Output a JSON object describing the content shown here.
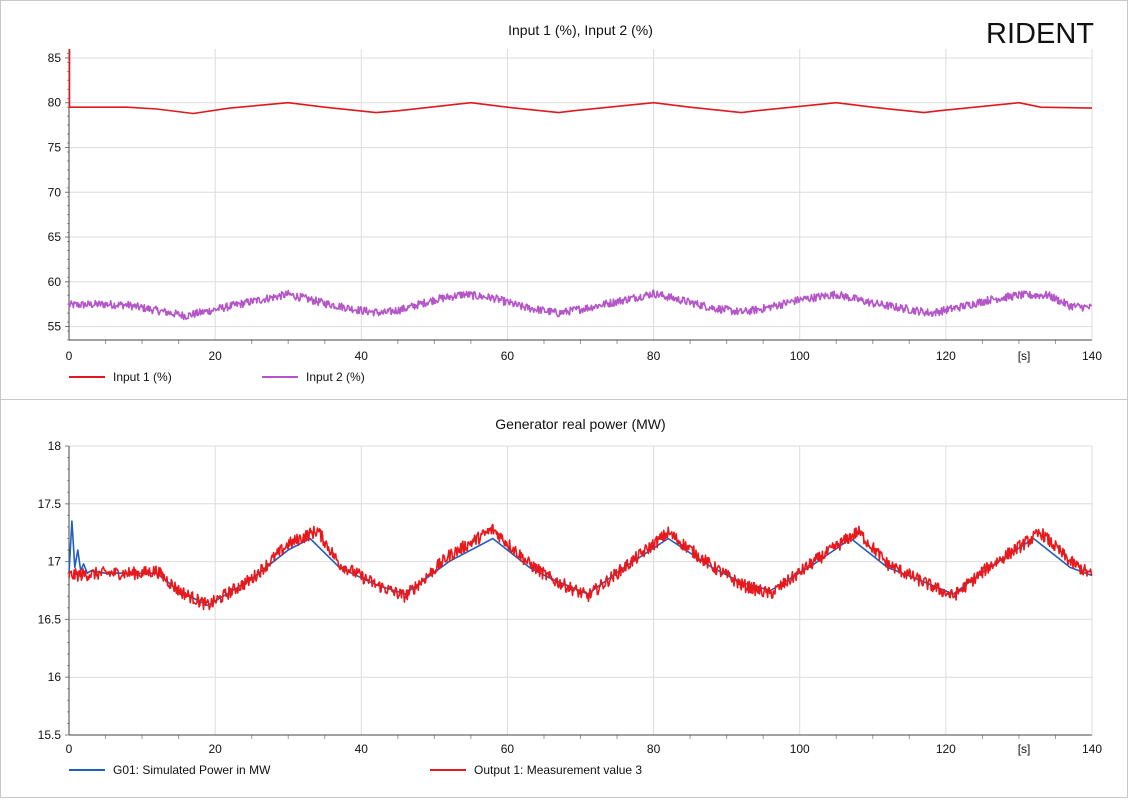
{
  "brand": "RIDENT",
  "x_unit_label": "[s]",
  "chart_data": [
    {
      "type": "line",
      "title": "Input 1 (%), Input 2 (%)",
      "xlabel": "",
      "ylabel": "",
      "xlim": [
        0,
        140
      ],
      "ylim": [
        53.5,
        86
      ],
      "x_ticks": [
        0,
        20,
        40,
        60,
        80,
        100,
        120,
        140
      ],
      "y_ticks": [
        55,
        60,
        65,
        70,
        75,
        80,
        85
      ],
      "grid": true,
      "legend_position": "bottom-left",
      "series": [
        {
          "name": "Input 1 (%)",
          "color": "#e0191e",
          "noise": 0.0,
          "x": [
            0,
            8,
            12,
            17,
            22,
            30,
            35,
            42,
            45,
            55,
            60,
            67,
            69,
            80,
            85,
            92,
            94,
            105,
            110,
            117,
            119,
            130,
            133,
            140
          ],
          "values": [
            79.5,
            79.5,
            79.3,
            78.8,
            79.4,
            80.0,
            79.5,
            78.9,
            79.1,
            80.0,
            79.5,
            78.9,
            79.1,
            80.0,
            79.5,
            78.9,
            79.1,
            80.0,
            79.5,
            78.9,
            79.1,
            80.0,
            79.5,
            79.4
          ]
        },
        {
          "name": "Input 2 (%)",
          "color": "#b455c8",
          "noise": 0.45,
          "x": [
            0,
            5,
            8,
            12,
            16,
            20,
            25,
            30,
            35,
            40,
            43,
            46,
            50,
            54,
            58,
            62,
            67,
            71,
            75,
            80,
            84,
            88,
            92,
            95,
            100,
            105,
            110,
            118,
            122,
            126,
            130,
            134,
            137,
            140
          ],
          "values": [
            57.4,
            57.5,
            57.4,
            56.8,
            56.2,
            56.9,
            57.8,
            58.6,
            57.6,
            56.8,
            56.5,
            57.0,
            58.0,
            58.6,
            58.2,
            57.2,
            56.5,
            57.1,
            57.8,
            58.7,
            57.9,
            57.1,
            56.6,
            57.0,
            58.0,
            58.6,
            57.6,
            56.5,
            57.2,
            58.0,
            58.5,
            58.5,
            57.3,
            57.1
          ]
        }
      ]
    },
    {
      "type": "line",
      "title": "Generator real power (MW)",
      "xlabel": "",
      "ylabel": "",
      "xlim": [
        0,
        140
      ],
      "ylim": [
        15.5,
        18
      ],
      "x_ticks": [
        0,
        20,
        40,
        60,
        80,
        100,
        120,
        140
      ],
      "y_ticks": [
        15.5,
        16,
        16.5,
        17,
        17.5,
        18
      ],
      "grid": true,
      "legend_position": "bottom-left",
      "series": [
        {
          "name": "G01: Simulated Power in MW",
          "color": "#1f5fc0",
          "noise": 0.0,
          "x": [
            0,
            0.4,
            0.8,
            1.2,
            1.6,
            2.0,
            2.5,
            3.0,
            5,
            10,
            12,
            15,
            19,
            25,
            30,
            33,
            37,
            42,
            46,
            52,
            58,
            63,
            66,
            71,
            76,
            82,
            88,
            92,
            96,
            102,
            107,
            112,
            116,
            121,
            126,
            132,
            137,
            140
          ],
          "values": [
            16.9,
            17.35,
            16.95,
            17.1,
            16.92,
            16.98,
            16.9,
            16.92,
            16.9,
            16.9,
            16.9,
            16.75,
            16.62,
            16.85,
            17.1,
            17.2,
            16.95,
            16.8,
            16.72,
            17.0,
            17.2,
            16.95,
            16.85,
            16.72,
            16.95,
            17.2,
            16.95,
            16.82,
            16.75,
            16.98,
            17.2,
            16.95,
            16.85,
            16.72,
            16.95,
            17.2,
            16.95,
            16.88
          ]
        },
        {
          "name": "Output 1: Measurement value 3",
          "color": "#e8191c",
          "noise": 0.055,
          "x": [
            0,
            5,
            10,
            12,
            15,
            19,
            25,
            30,
            34,
            37,
            42,
            46,
            52,
            58,
            63,
            66,
            71,
            76,
            82,
            88,
            92,
            96,
            102,
            108,
            112,
            116,
            121,
            126,
            133,
            137,
            140
          ],
          "values": [
            16.88,
            16.9,
            16.9,
            16.92,
            16.75,
            16.62,
            16.85,
            17.15,
            17.27,
            16.98,
            16.8,
            16.7,
            17.05,
            17.28,
            16.98,
            16.85,
            16.7,
            16.95,
            17.25,
            16.96,
            16.8,
            16.72,
            17.0,
            17.26,
            16.98,
            16.85,
            16.7,
            16.96,
            17.25,
            17.0,
            16.88
          ]
        }
      ]
    }
  ]
}
